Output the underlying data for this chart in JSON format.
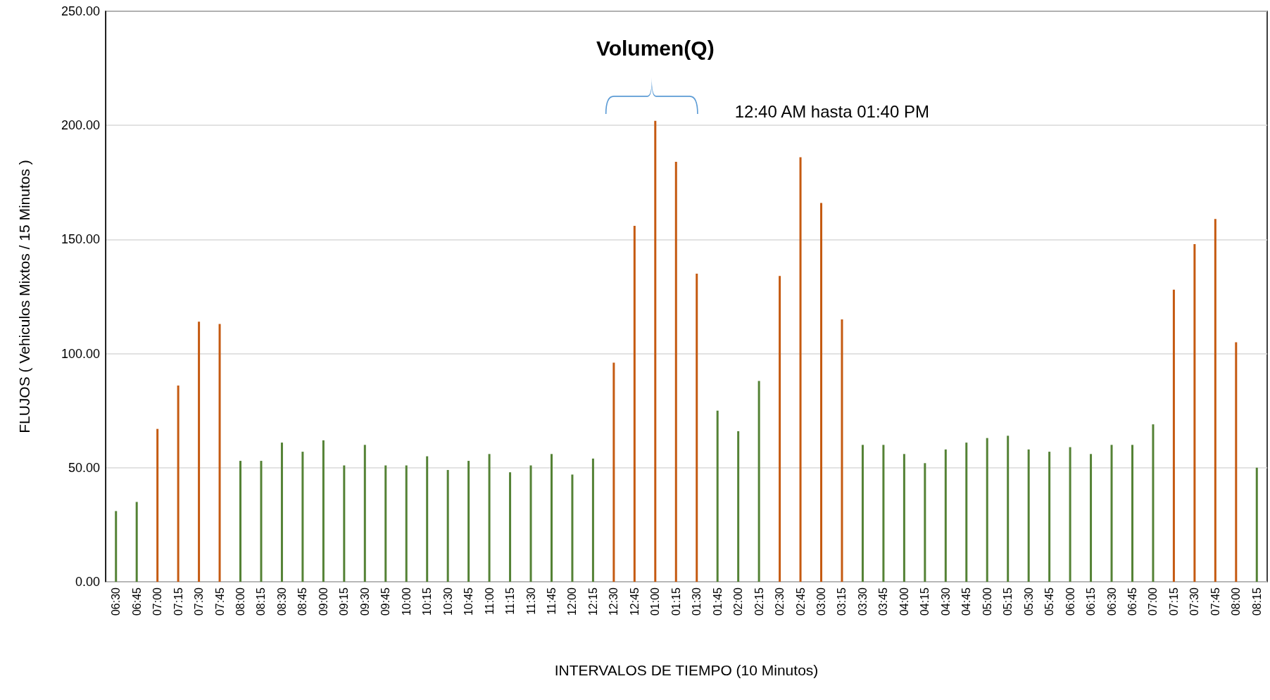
{
  "chart_data": {
    "type": "bar",
    "title": "Volumen(Q)",
    "xlabel": "INTERVALOS DE TIEMPO (10 Minutos)",
    "ylabel": "FLUJOS ( Vehiculos Mixtos / 15 Minutos )",
    "annotations": [
      "12:40 AM hasta 01:40 PM"
    ],
    "categories": [
      "06:30",
      "06:45",
      "07:00",
      "07:15",
      "07:30",
      "07:45",
      "08:00",
      "08:15",
      "08:30",
      "08:45",
      "09:00",
      "09:15",
      "09:30",
      "09:45",
      "10:00",
      "10:15",
      "10:30",
      "10:45",
      "11:00",
      "11:15",
      "11:30",
      "11:45",
      "12:00",
      "12:15",
      "12:30",
      "12:45",
      "01:00",
      "01:15",
      "01:30",
      "01:45",
      "02:00",
      "02:15",
      "02:30",
      "02:45",
      "03:00",
      "03:15",
      "03:30",
      "03:45",
      "04:00",
      "04:15",
      "04:30",
      "04:45",
      "05:00",
      "05:15",
      "05:30",
      "05:45",
      "06:00",
      "06:15",
      "06:30",
      "06:45",
      "07:00",
      "07:15",
      "07:30",
      "07:45",
      "08:00",
      "08:15"
    ],
    "values": [
      31,
      35,
      67,
      86,
      114,
      113,
      53,
      53,
      61,
      57,
      62,
      51,
      60,
      51,
      51,
      55,
      49,
      53,
      56,
      48,
      51,
      56,
      47,
      54,
      96,
      156,
      202,
      184,
      135,
      75,
      66,
      88,
      134,
      186,
      166,
      115,
      60,
      60,
      56,
      52,
      58,
      61,
      63,
      64,
      58,
      57,
      59,
      56,
      60,
      60,
      69,
      128,
      148,
      159,
      105,
      50
    ],
    "colors": [
      "#548235",
      "#548235",
      "#c55a11",
      "#c55a11",
      "#c55a11",
      "#c55a11",
      "#548235",
      "#548235",
      "#548235",
      "#548235",
      "#548235",
      "#548235",
      "#548235",
      "#548235",
      "#548235",
      "#548235",
      "#548235",
      "#548235",
      "#548235",
      "#548235",
      "#548235",
      "#548235",
      "#548235",
      "#548235",
      "#c55a11",
      "#c55a11",
      "#c55a11",
      "#c55a11",
      "#c55a11",
      "#548235",
      "#548235",
      "#548235",
      "#c55a11",
      "#c55a11",
      "#c55a11",
      "#c55a11",
      "#548235",
      "#548235",
      "#548235",
      "#548235",
      "#548235",
      "#548235",
      "#548235",
      "#548235",
      "#548235",
      "#548235",
      "#548235",
      "#548235",
      "#548235",
      "#548235",
      "#548235",
      "#c55a11",
      "#c55a11",
      "#c55a11",
      "#c55a11",
      "#548235"
    ],
    "ylim": [
      0,
      250
    ],
    "yticks": [
      {
        "value": 0,
        "label": "0.00"
      },
      {
        "value": 50,
        "label": "50.00"
      },
      {
        "value": 100,
        "label": "100.00"
      },
      {
        "value": 150,
        "label": "150.00"
      },
      {
        "value": 200,
        "label": "200.00"
      },
      {
        "value": 250,
        "label": "250.00"
      }
    ],
    "grid": "y"
  }
}
